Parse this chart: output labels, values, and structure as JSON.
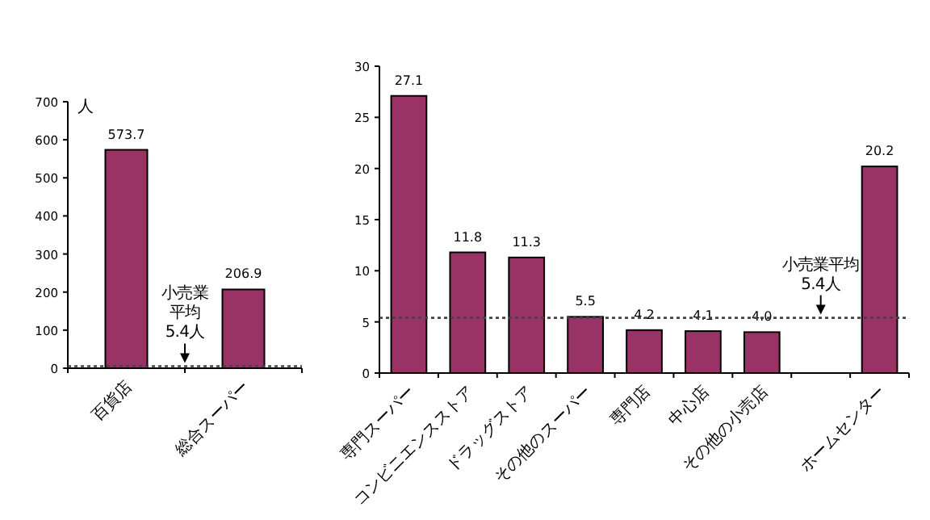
{
  "chart_data": [
    {
      "type": "bar",
      "ylabel": "人",
      "categories": [
        "百貨店",
        "総合スーパー"
      ],
      "values": [
        573.7,
        206.9
      ],
      "value_labels": [
        "573.7",
        "206.9"
      ],
      "color": "#993366",
      "ylim": [
        0,
        700
      ],
      "yticks": [
        0,
        100,
        200,
        300,
        400,
        500,
        600,
        700
      ],
      "grid": false,
      "ref_lines": [
        {
          "axis": "y",
          "value": 5.4,
          "label": "小売業平均 5.4人",
          "line_style": "dotted",
          "color": "#444444"
        }
      ]
    },
    {
      "type": "bar",
      "categories": [
        "専門スーパー",
        "コンビニエンスストア",
        "ドラッグストア",
        "その他のスーパー",
        "専門店",
        "中心店",
        "その他の小売店",
        null,
        "ホームセンター"
      ],
      "values": [
        27.1,
        11.8,
        11.3,
        5.5,
        4.2,
        4.1,
        4.0,
        null,
        20.2
      ],
      "value_labels": [
        "27.1",
        "11.8",
        "11.3",
        "5.5",
        "4.2",
        "4.1",
        "4.0",
        null,
        "20.2"
      ],
      "color": "#993366",
      "ylim": [
        0,
        30
      ],
      "yticks": [
        0,
        5,
        10,
        15,
        20,
        25,
        30
      ],
      "grid": false,
      "ref_lines": [
        {
          "axis": "y",
          "value": 5.4,
          "label": "小売業平均 5.4人",
          "line_style": "dotted",
          "color": "#444444"
        }
      ]
    }
  ]
}
